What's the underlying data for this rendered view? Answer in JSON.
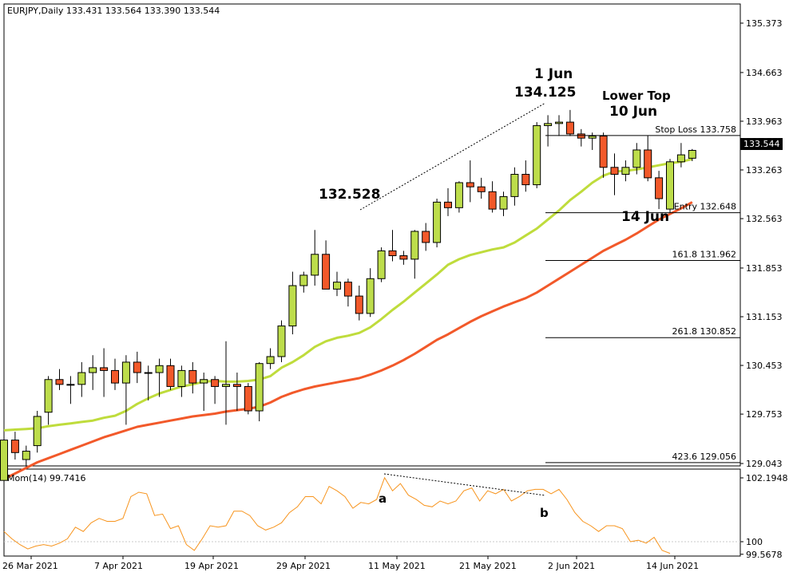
{
  "chart_data": [
    {
      "type": "candlestick",
      "title": "EURJPY,Daily  133.431 133.564 133.390 133.544",
      "current_price": "133.544",
      "ylim": [
        128.75,
        135.65
      ],
      "y_ticks": [
        "135.373",
        "134.663",
        "133.963",
        "133.263",
        "132.563",
        "131.853",
        "131.153",
        "130.453",
        "129.753",
        "129.043"
      ],
      "x_ticks": [
        "26 Mar 2021",
        "7 Apr 2021",
        "19 Apr 2021",
        "29 Apr 2021",
        "11 May 2021",
        "21 May 2021",
        "2 Jun 2021",
        "14 Jun 2021"
      ],
      "candles": [
        {
          "o": 128.8,
          "h": 129.4,
          "l": 128.7,
          "c": 129.38
        },
        {
          "o": 129.38,
          "h": 129.5,
          "l": 129.1,
          "c": 129.2
        },
        {
          "o": 129.1,
          "h": 129.3,
          "l": 129.0,
          "c": 129.22
        },
        {
          "o": 129.3,
          "h": 129.8,
          "l": 129.2,
          "c": 129.72
        },
        {
          "o": 129.78,
          "h": 130.3,
          "l": 129.6,
          "c": 130.25
        },
        {
          "o": 130.25,
          "h": 130.4,
          "l": 130.1,
          "c": 130.18
        },
        {
          "o": 130.18,
          "h": 130.3,
          "l": 129.9,
          "c": 130.18
        },
        {
          "o": 130.18,
          "h": 130.5,
          "l": 130.0,
          "c": 130.35
        },
        {
          "o": 130.35,
          "h": 130.6,
          "l": 130.1,
          "c": 130.42
        },
        {
          "o": 130.42,
          "h": 130.7,
          "l": 130.0,
          "c": 130.38
        },
        {
          "o": 130.38,
          "h": 130.55,
          "l": 130.1,
          "c": 130.2
        },
        {
          "o": 130.2,
          "h": 130.6,
          "l": 129.6,
          "c": 130.5
        },
        {
          "o": 130.5,
          "h": 130.65,
          "l": 130.2,
          "c": 130.35
        },
        {
          "o": 130.35,
          "h": 130.45,
          "l": 129.95,
          "c": 130.35
        },
        {
          "o": 130.35,
          "h": 130.55,
          "l": 130.0,
          "c": 130.45
        },
        {
          "o": 130.45,
          "h": 130.55,
          "l": 130.1,
          "c": 130.15
        },
        {
          "o": 130.15,
          "h": 130.45,
          "l": 130.0,
          "c": 130.38
        },
        {
          "o": 130.38,
          "h": 130.5,
          "l": 130.05,
          "c": 130.2
        },
        {
          "o": 130.2,
          "h": 130.35,
          "l": 129.8,
          "c": 130.25
        },
        {
          "o": 130.25,
          "h": 130.3,
          "l": 129.9,
          "c": 130.15
        },
        {
          "o": 130.15,
          "h": 130.8,
          "l": 129.6,
          "c": 130.18
        },
        {
          "o": 130.18,
          "h": 130.35,
          "l": 129.8,
          "c": 130.15
        },
        {
          "o": 130.15,
          "h": 130.2,
          "l": 129.75,
          "c": 129.8
        },
        {
          "o": 129.8,
          "h": 130.5,
          "l": 129.65,
          "c": 130.48
        },
        {
          "o": 130.48,
          "h": 130.7,
          "l": 130.4,
          "c": 130.58
        },
        {
          "o": 130.58,
          "h": 131.1,
          "l": 130.5,
          "c": 131.02
        },
        {
          "o": 131.02,
          "h": 131.8,
          "l": 130.9,
          "c": 131.6
        },
        {
          "o": 131.6,
          "h": 131.8,
          "l": 131.5,
          "c": 131.75
        },
        {
          "o": 131.75,
          "h": 132.4,
          "l": 131.6,
          "c": 132.05
        },
        {
          "o": 132.05,
          "h": 132.25,
          "l": 131.55,
          "c": 131.55
        },
        {
          "o": 131.55,
          "h": 131.8,
          "l": 131.45,
          "c": 131.65
        },
        {
          "o": 131.65,
          "h": 131.7,
          "l": 131.3,
          "c": 131.45
        },
        {
          "o": 131.45,
          "h": 131.6,
          "l": 131.1,
          "c": 131.2
        },
        {
          "o": 131.2,
          "h": 131.85,
          "l": 131.15,
          "c": 131.7
        },
        {
          "o": 131.7,
          "h": 132.15,
          "l": 131.65,
          "c": 132.1
        },
        {
          "o": 132.1,
          "h": 132.4,
          "l": 131.95,
          "c": 132.03
        },
        {
          "o": 132.03,
          "h": 132.1,
          "l": 131.9,
          "c": 131.98
        },
        {
          "o": 131.98,
          "h": 132.4,
          "l": 131.7,
          "c": 132.38
        },
        {
          "o": 132.38,
          "h": 132.5,
          "l": 132.1,
          "c": 132.22
        },
        {
          "o": 132.22,
          "h": 132.85,
          "l": 132.15,
          "c": 132.8
        },
        {
          "o": 132.8,
          "h": 133.0,
          "l": 132.6,
          "c": 132.72
        },
        {
          "o": 132.72,
          "h": 133.1,
          "l": 132.65,
          "c": 133.08
        },
        {
          "o": 133.08,
          "h": 133.4,
          "l": 132.8,
          "c": 133.02
        },
        {
          "o": 133.02,
          "h": 133.15,
          "l": 132.85,
          "c": 132.95
        },
        {
          "o": 132.95,
          "h": 133.1,
          "l": 132.65,
          "c": 132.7
        },
        {
          "o": 132.7,
          "h": 132.95,
          "l": 132.6,
          "c": 132.88
        },
        {
          "o": 132.88,
          "h": 133.3,
          "l": 132.75,
          "c": 133.2
        },
        {
          "o": 133.2,
          "h": 133.4,
          "l": 132.95,
          "c": 133.05
        },
        {
          "o": 133.05,
          "h": 133.95,
          "l": 133.0,
          "c": 133.9
        },
        {
          "o": 133.9,
          "h": 134.05,
          "l": 133.6,
          "c": 133.93
        },
        {
          "o": 133.93,
          "h": 134.05,
          "l": 133.75,
          "c": 133.95
        },
        {
          "o": 133.95,
          "h": 134.125,
          "l": 133.75,
          "c": 133.78
        },
        {
          "o": 133.78,
          "h": 133.85,
          "l": 133.6,
          "c": 133.72
        },
        {
          "o": 133.72,
          "h": 133.8,
          "l": 133.55,
          "c": 133.75
        },
        {
          "o": 133.75,
          "h": 133.8,
          "l": 133.15,
          "c": 133.3
        },
        {
          "o": 133.3,
          "h": 133.5,
          "l": 132.9,
          "c": 133.2
        },
        {
          "o": 133.2,
          "h": 133.4,
          "l": 133.1,
          "c": 133.3
        },
        {
          "o": 133.3,
          "h": 133.65,
          "l": 133.2,
          "c": 133.55
        },
        {
          "o": 133.55,
          "h": 133.758,
          "l": 133.1,
          "c": 133.15
        },
        {
          "o": 133.15,
          "h": 133.25,
          "l": 132.7,
          "c": 132.85
        },
        {
          "o": 132.7,
          "h": 133.42,
          "l": 132.65,
          "c": 133.38
        },
        {
          "o": 133.38,
          "h": 133.65,
          "l": 133.3,
          "c": 133.48
        },
        {
          "o": 133.431,
          "h": 133.564,
          "l": 133.39,
          "c": 133.544
        }
      ],
      "ma_fast": [
        129.52,
        129.53,
        129.54,
        129.55,
        129.58,
        129.6,
        129.62,
        129.64,
        129.66,
        129.7,
        129.73,
        129.8,
        129.9,
        129.98,
        130.05,
        130.1,
        130.15,
        130.18,
        130.22,
        130.23,
        130.22,
        130.22,
        130.23,
        130.25,
        130.3,
        130.42,
        130.5,
        130.6,
        130.72,
        130.8,
        130.85,
        130.88,
        130.92,
        131.0,
        131.12,
        131.25,
        131.37,
        131.5,
        131.63,
        131.76,
        131.9,
        131.98,
        132.04,
        132.08,
        132.12,
        132.15,
        132.22,
        132.32,
        132.42,
        132.55,
        132.68,
        132.83,
        132.95,
        133.08,
        133.18,
        133.24,
        133.25,
        133.27,
        133.3,
        133.33,
        133.36,
        133.38,
        133.42
      ],
      "ma_slow": [
        128.82,
        128.9,
        128.98,
        129.06,
        129.12,
        129.18,
        129.24,
        129.3,
        129.36,
        129.42,
        129.47,
        129.52,
        129.57,
        129.6,
        129.63,
        129.66,
        129.69,
        129.72,
        129.74,
        129.76,
        129.79,
        129.81,
        129.83,
        129.86,
        129.92,
        130.0,
        130.06,
        130.11,
        130.15,
        130.18,
        130.21,
        130.24,
        130.27,
        130.32,
        130.38,
        130.45,
        130.53,
        130.62,
        130.72,
        130.82,
        130.9,
        130.99,
        131.08,
        131.16,
        131.23,
        131.3,
        131.36,
        131.42,
        131.5,
        131.6,
        131.7,
        131.8,
        131.9,
        132.0,
        132.1,
        132.18,
        132.26,
        132.35,
        132.45,
        132.55,
        132.63,
        132.71,
        132.8
      ],
      "levels": [
        {
          "label": "Stop Loss",
          "value": "133.758"
        },
        {
          "label": "Entry",
          "value": "132.648"
        },
        {
          "label": "161.8",
          "value": "131.962"
        },
        {
          "label": "261.8",
          "value": "130.852"
        },
        {
          "label": "423.6",
          "value": "129.056"
        }
      ],
      "annotations": {
        "jun1_date": "1 Jun",
        "jun1_price": "134.125",
        "lower_top": "Lower Top",
        "jun10": "10 Jun",
        "may_high": "132.528",
        "jun14": "14 Jun"
      },
      "colors": {
        "bull": "#bddd4b",
        "bear": "#f2592a",
        "ma_fast": "#bfdc3c",
        "ma_slow": "#f2592a",
        "momentum": "#f7941d"
      }
    },
    {
      "type": "line",
      "title": "Mom(14) 99.7416",
      "ylim": [
        99.35,
        102.4
      ],
      "y_ticks": [
        "102.1948",
        "100",
        "99.5678"
      ],
      "values": [
        100.35,
        100.1,
        99.9,
        99.75,
        99.85,
        99.9,
        99.85,
        99.95,
        100.1,
        100.5,
        100.35,
        100.65,
        100.8,
        100.7,
        100.7,
        100.8,
        101.55,
        101.7,
        101.65,
        100.9,
        100.95,
        100.45,
        100.55,
        99.9,
        99.7,
        100.1,
        100.55,
        100.5,
        100.55,
        101.05,
        101.05,
        100.9,
        100.55,
        100.4,
        100.5,
        100.65,
        101.0,
        101.2,
        101.55,
        101.55,
        101.3,
        101.9,
        101.75,
        101.55,
        101.15,
        101.35,
        101.3,
        101.45,
        102.2,
        101.75,
        102.0,
        101.6,
        101.45,
        101.25,
        101.2,
        101.4,
        101.3,
        101.4,
        101.75,
        101.85,
        101.4,
        101.75,
        101.65,
        101.8,
        101.4,
        101.55,
        101.75,
        101.8,
        101.8,
        101.65,
        101.8,
        101.45,
        101.0,
        100.7,
        100.55,
        100.35,
        100.55,
        100.55,
        100.45,
        100.0,
        100.05,
        99.95,
        100.15,
        99.7,
        99.6
      ],
      "markers": {
        "a": "a",
        "b": "b"
      }
    }
  ]
}
